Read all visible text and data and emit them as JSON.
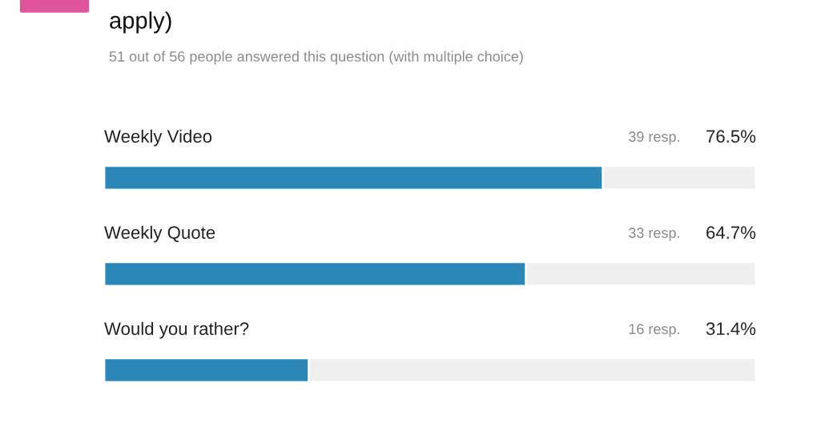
{
  "chart_data": {
    "type": "bar",
    "orientation": "horizontal",
    "title": "apply)",
    "subtitle": "51 out of 56 people answered this question (with multiple choice)",
    "categories": [
      "Weekly Video",
      "Weekly Quote",
      "Would you rather?"
    ],
    "values": [
      76.5,
      64.7,
      31.4
    ],
    "color": "#2b87b8",
    "value_labels": [
      "76.5%",
      "64.7%",
      "31.4%"
    ],
    "annotations": [
      "39 resp.",
      "33 resp.",
      "16 resp."
    ],
    "xlim": [
      0,
      100
    ]
  }
}
